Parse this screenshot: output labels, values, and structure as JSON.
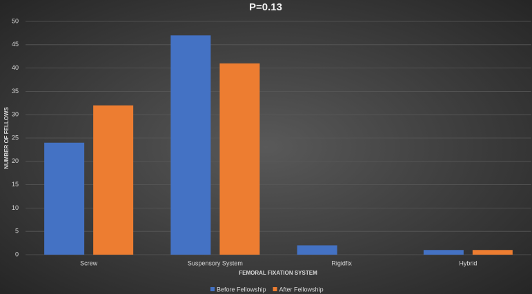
{
  "chart_data": {
    "type": "bar",
    "title": "P=0.13",
    "x_label": "FEMORAL FIXATION SYSTEM",
    "y_label": "NUMBER OF FELLOWS",
    "categories": [
      "Screw",
      "Suspensory System",
      "Rigidfix",
      "Hybrid"
    ],
    "series": [
      {
        "name": "Before Fellowship",
        "color": "#4472c4",
        "values": [
          24,
          47,
          2,
          1
        ]
      },
      {
        "name": "After Fellowship",
        "color": "#ed7d31",
        "values": [
          32,
          41,
          0,
          1
        ]
      }
    ],
    "ylim": [
      0,
      50
    ],
    "yticks": [
      0,
      5,
      10,
      15,
      20,
      25,
      30,
      35,
      40,
      45,
      50
    ],
    "grid": true,
    "legend": "bottom"
  }
}
